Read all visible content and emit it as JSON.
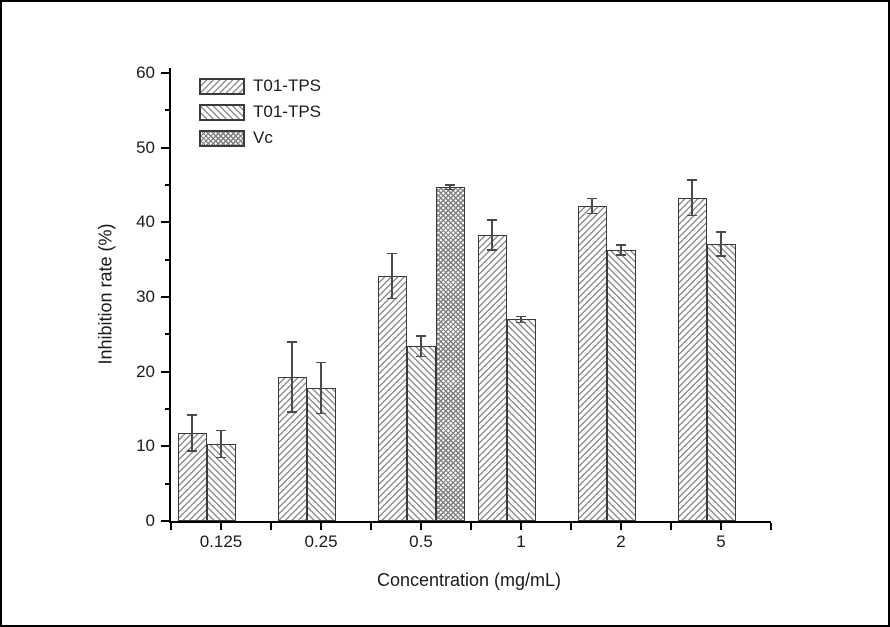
{
  "figure": {
    "background": "#ffffff",
    "border_color": "#000000"
  },
  "chart_data": {
    "type": "bar",
    "title": "",
    "xlabel": "Concentration (mg/mL)",
    "ylabel": "Inhibition rate (%)",
    "categories": [
      "0.125",
      "0.25",
      "0.5",
      "1",
      "2",
      "5"
    ],
    "series": [
      {
        "name": "T01-TPS",
        "pattern": "diagonal-forward",
        "values": [
          11.8,
          19.3,
          32.8,
          38.3,
          42.2,
          43.3
        ],
        "errors": [
          2.5,
          4.8,
          3.1,
          2.1,
          1.1,
          2.5
        ]
      },
      {
        "name": "T01-TPS",
        "pattern": "diagonal-back",
        "values": [
          10.3,
          17.8,
          23.4,
          27.0,
          36.3,
          37.1
        ],
        "errors": [
          1.9,
          3.5,
          1.5,
          0.5,
          0.8,
          1.7
        ]
      },
      {
        "name": "Vc",
        "pattern": "crosshatch",
        "values": [
          null,
          null,
          44.7,
          null,
          null,
          null
        ],
        "errors": [
          null,
          null,
          0.4,
          null,
          null,
          null
        ]
      }
    ],
    "ylim": [
      0,
      60
    ],
    "y_major_ticks": [
      0,
      10,
      20,
      30,
      40,
      50,
      60
    ],
    "y_minor_step": 5,
    "legend_position": "top-left",
    "grid": false,
    "colors": {
      "bar_fill": "#ffffff",
      "bar_border": "#3a3a3a",
      "hatch": "#8f8f8f",
      "axis": "#000000",
      "text": "#1a1a1a"
    }
  }
}
